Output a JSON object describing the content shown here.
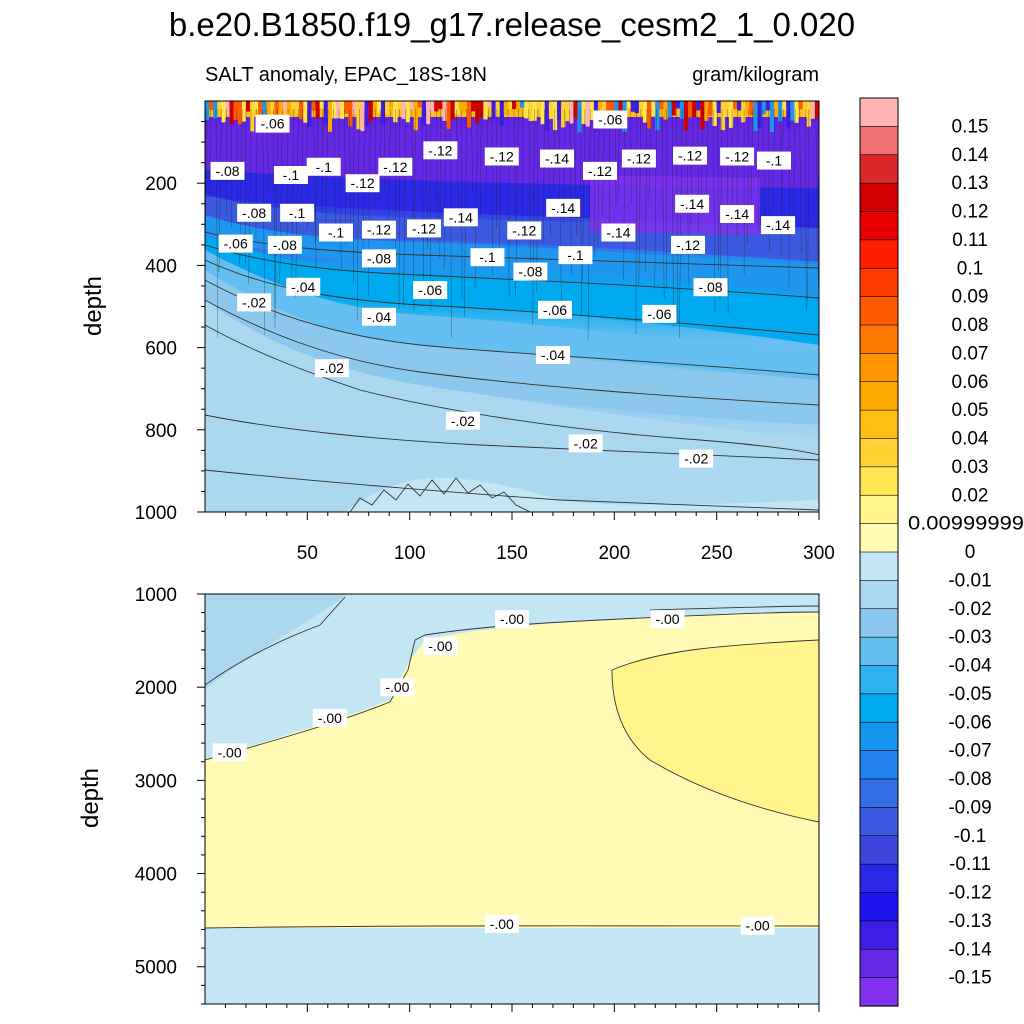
{
  "title": "b.e20.B1850.f19_g17.release_cesm2_1_0.020",
  "left_subtitle": "SALT anomaly, EPAC_18S-18N",
  "right_subtitle": "gram/kilogram",
  "chart_data": [
    {
      "type": "heatmap",
      "panel": "upper",
      "ylabel": "depth",
      "ylim": [
        1000,
        0
      ],
      "xlim": [
        0,
        300
      ],
      "x_ticks": [
        50,
        100,
        150,
        200,
        250,
        300
      ],
      "y_ticks": [
        200,
        400,
        600,
        800,
        1000
      ],
      "contour_levels": [
        -0.02,
        -0.04,
        -0.06,
        -0.08,
        -0.1,
        -0.12,
        -0.14
      ],
      "contour_labels": [
        {
          "text": "-.06",
          "x": 33,
          "y": 55
        },
        {
          "text": "-.06",
          "x": 198,
          "y": 45
        },
        {
          "text": "-.08",
          "x": 11,
          "y": 170
        },
        {
          "text": "-.1",
          "x": 42,
          "y": 180
        },
        {
          "text": "-.1",
          "x": 58,
          "y": 160
        },
        {
          "text": "-.12",
          "x": 77,
          "y": 200
        },
        {
          "text": "-.12",
          "x": 93,
          "y": 160
        },
        {
          "text": "-.12",
          "x": 115,
          "y": 120
        },
        {
          "text": "-.12",
          "x": 145,
          "y": 135
        },
        {
          "text": "-.14",
          "x": 172,
          "y": 140
        },
        {
          "text": "-.12",
          "x": 193,
          "y": 170
        },
        {
          "text": "-.12",
          "x": 212,
          "y": 140
        },
        {
          "text": "-.12",
          "x": 237,
          "y": 133
        },
        {
          "text": "-.12",
          "x": 260,
          "y": 135
        },
        {
          "text": "-.1",
          "x": 278,
          "y": 145
        },
        {
          "text": "-.08",
          "x": 24,
          "y": 272
        },
        {
          "text": "-.1",
          "x": 45,
          "y": 272
        },
        {
          "text": "-.14",
          "x": 175,
          "y": 260
        },
        {
          "text": "-.14",
          "x": 238,
          "y": 250
        },
        {
          "text": "-.14",
          "x": 260,
          "y": 275
        },
        {
          "text": "-.14",
          "x": 280,
          "y": 302
        },
        {
          "text": "-.14",
          "x": 125,
          "y": 283
        },
        {
          "text": "-.12",
          "x": 107,
          "y": 310
        },
        {
          "text": "-.12",
          "x": 156,
          "y": 315
        },
        {
          "text": "-.14",
          "x": 202,
          "y": 320
        },
        {
          "text": "-.12",
          "x": 236,
          "y": 350
        },
        {
          "text": "-.1",
          "x": 64,
          "y": 320
        },
        {
          "text": "-.12",
          "x": 85,
          "y": 313
        },
        {
          "text": "-.06",
          "x": 15,
          "y": 347
        },
        {
          "text": "-.08",
          "x": 39,
          "y": 350
        },
        {
          "text": "-.08",
          "x": 85,
          "y": 383
        },
        {
          "text": "-.1",
          "x": 138,
          "y": 380
        },
        {
          "text": "-.1",
          "x": 181,
          "y": 375
        },
        {
          "text": "-.08",
          "x": 159,
          "y": 415
        },
        {
          "text": "-.04",
          "x": 48,
          "y": 452
        },
        {
          "text": "-.06",
          "x": 110,
          "y": 460
        },
        {
          "text": "-.08",
          "x": 247,
          "y": 453
        },
        {
          "text": "-.02",
          "x": 24,
          "y": 490
        },
        {
          "text": "-.04",
          "x": 85,
          "y": 525
        },
        {
          "text": "-.06",
          "x": 171,
          "y": 508
        },
        {
          "text": "-.06",
          "x": 222,
          "y": 518
        },
        {
          "text": "-.04",
          "x": 170,
          "y": 618
        },
        {
          "text": "-.02",
          "x": 62,
          "y": 650
        },
        {
          "text": "-.02",
          "x": 126,
          "y": 778
        },
        {
          "text": "-.02",
          "x": 186,
          "y": 833
        },
        {
          "text": "-.02",
          "x": 240,
          "y": 870
        }
      ]
    },
    {
      "type": "heatmap",
      "panel": "lower",
      "ylabel": "depth",
      "ylim": [
        5400,
        1000
      ],
      "xlim": [
        0,
        300
      ],
      "y_ticks": [
        1000,
        2000,
        3000,
        4000,
        5000
      ],
      "contour_levels": [
        0,
        0.01,
        -0.01
      ],
      "contour_labels": [
        {
          "text": "-.00",
          "x": 150,
          "y": 1270
        },
        {
          "text": "-.00",
          "x": 226,
          "y": 1270
        },
        {
          "text": "-.00",
          "x": 115,
          "y": 1560
        },
        {
          "text": "-.00",
          "x": 94,
          "y": 2000
        },
        {
          "text": "-.00",
          "x": 61,
          "y": 2330
        },
        {
          "text": "-.00",
          "x": 12,
          "y": 2700
        },
        {
          "text": "-.00",
          "x": 145,
          "y": 4540
        },
        {
          "text": "-.00",
          "x": 270,
          "y": 4560
        }
      ]
    }
  ],
  "colorbar": {
    "labels": [
      "0.15",
      "0.14",
      "0.13",
      "0.12",
      "0.11",
      "0.1",
      "0.09",
      "0.08",
      "0.07",
      "0.06",
      "0.05",
      "0.04",
      "0.03",
      "0.02",
      "0.00999999",
      "0",
      "-0.01",
      "-0.02",
      "-0.03",
      "-0.04",
      "-0.05",
      "-0.06",
      "-0.07",
      "-0.08",
      "-0.09",
      "-0.1",
      "-0.11",
      "-0.12",
      "-0.13",
      "-0.14",
      "-0.15"
    ],
    "colors": [
      "#ffb3b3",
      "#f07070",
      "#dc2828",
      "#d20000",
      "#e80000",
      "#ff1e00",
      "#ff3c00",
      "#ff5a00",
      "#ff7800",
      "#ff9600",
      "#ffaa00",
      "#ffbe14",
      "#ffd232",
      "#ffe650",
      "#fff58c",
      "#fffab4",
      "#c3e6f5",
      "#aad8f0",
      "#8cc8ee",
      "#64beef",
      "#2db4f0",
      "#00aaf0",
      "#1496f0",
      "#2382f0",
      "#326ee6",
      "#3c5ae1",
      "#3c46dc",
      "#2828e6",
      "#1e14f0",
      "#3c1ee6",
      "#6428e6",
      "#8232ee"
    ]
  }
}
